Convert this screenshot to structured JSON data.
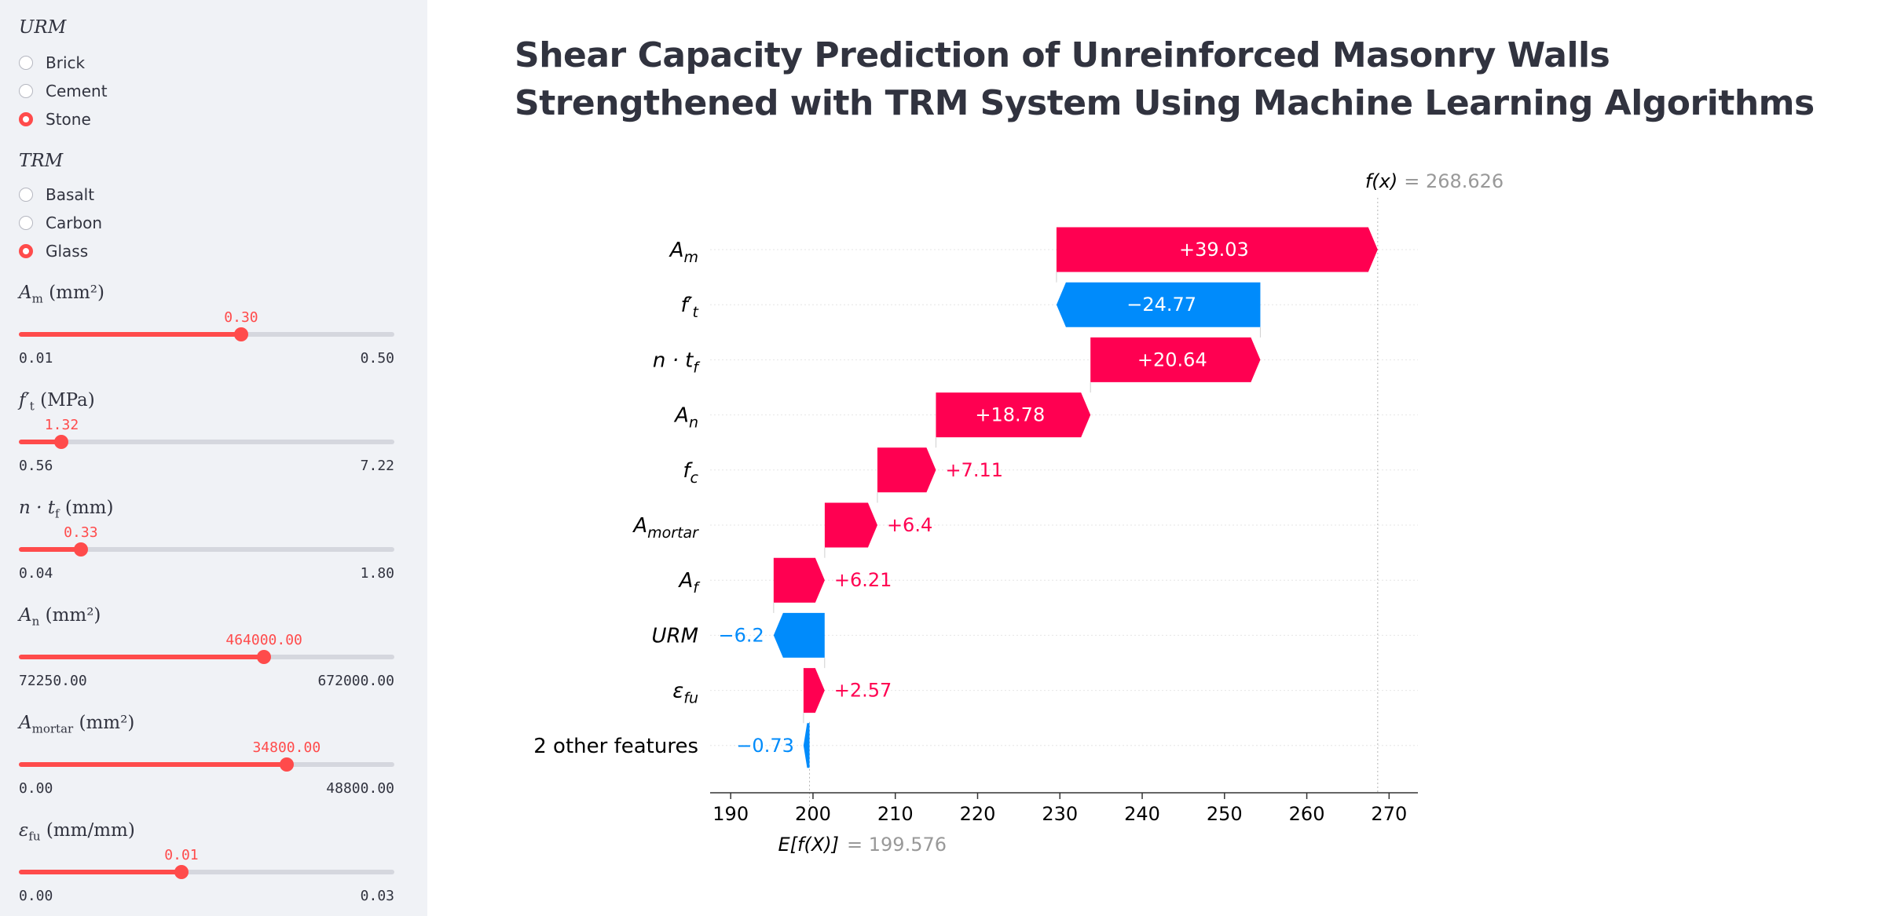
{
  "title": "Shear Capacity Prediction of Unreinforced Masonry Walls Strengthened with TRM System Using Machine Learning Algorithms",
  "sidebar": {
    "urm": {
      "title": "URM",
      "options": [
        "Brick",
        "Cement",
        "Stone"
      ],
      "selected": "Stone"
    },
    "trm": {
      "title": "TRM",
      "options": [
        "Basalt",
        "Carbon",
        "Glass"
      ],
      "selected": "Glass"
    },
    "sliders": [
      {
        "symbol": "A",
        "sub": "m",
        "unit": "(mm²)",
        "value": "0.30",
        "min": "0.01",
        "max": "0.50",
        "fraction": 0.592
      },
      {
        "symbol": "f′",
        "sub": "t",
        "unit": "(MPa)",
        "value": "1.32",
        "min": "0.56",
        "max": "7.22",
        "fraction": 0.114
      },
      {
        "symbol": "n · t",
        "sub": "f",
        "unit": "(mm)",
        "value": "0.33",
        "min": "0.04",
        "max": "1.80",
        "fraction": 0.165
      },
      {
        "symbol": "A",
        "sub": "n",
        "unit": "(mm²)",
        "value": "464000.00",
        "min": "72250.00",
        "max": "672000.00",
        "fraction": 0.653
      },
      {
        "symbol": "A",
        "sub": "mortar",
        "unit": "(mm²)",
        "value": "34800.00",
        "min": "0.00",
        "max": "48800.00",
        "fraction": 0.713
      },
      {
        "symbol": "ε",
        "sub": "fu",
        "unit": "(mm/mm)",
        "value": "0.01",
        "min": "0.00",
        "max": "0.03",
        "fraction": 0.433
      }
    ]
  },
  "chart_data": {
    "type": "waterfall",
    "fx_label": "f(x)",
    "fx_value": "= 268.626",
    "base_label": "E[f(X)]",
    "base_value": "= 199.576",
    "base": 199.576,
    "xlim": [
      187.5,
      273.5
    ],
    "xticks": [
      190,
      200,
      210,
      220,
      230,
      240,
      250,
      260,
      270
    ],
    "features": [
      {
        "base": "A",
        "sub": "m",
        "label": "+39.03",
        "value": 39.03
      },
      {
        "base": "f′",
        "sub": "t",
        "label": "−24.77",
        "value": -24.77
      },
      {
        "base": "n · t",
        "sub": "f",
        "label": "+20.64",
        "value": 20.64
      },
      {
        "base": "A",
        "sub": "n",
        "label": "+18.78",
        "value": 18.78
      },
      {
        "base": "f",
        "sub": "c",
        "label": "+7.11",
        "value": 7.11
      },
      {
        "base": "A",
        "sub": "mortar",
        "label": "+6.4",
        "value": 6.4
      },
      {
        "base": "A",
        "sub": "f",
        "label": "+6.21",
        "value": 6.21
      },
      {
        "base": "URM",
        "sub": "",
        "label": "−6.2",
        "value": -6.2
      },
      {
        "base": "ε",
        "sub": "fu",
        "label": "+2.57",
        "value": 2.57
      },
      {
        "base": "2 other features",
        "sub": "",
        "label": "−0.73",
        "value": -0.73,
        "plain": true
      }
    ],
    "colors": {
      "positive": "#ff0051",
      "negative": "#008bfb"
    }
  }
}
